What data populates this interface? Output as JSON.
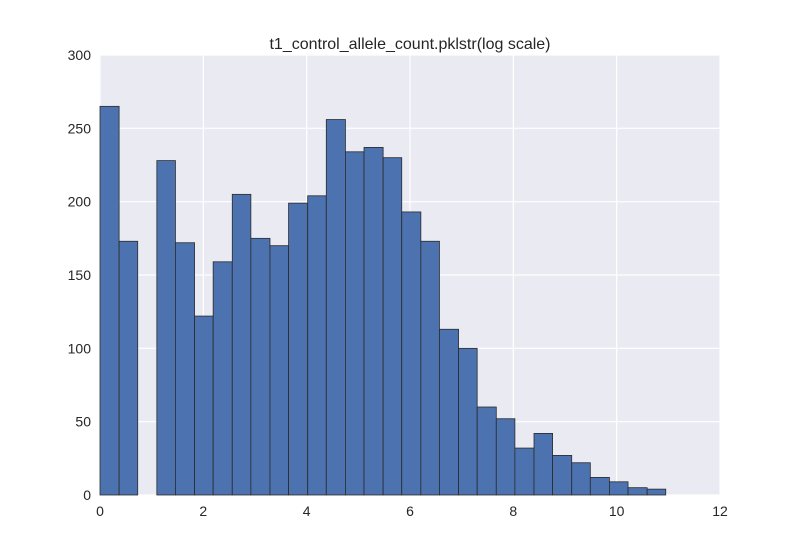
{
  "chart_data": {
    "type": "bar",
    "title": "t1_control_allele_count.pklstr(log scale)",
    "xlabel": "",
    "ylabel": "",
    "xlim": [
      0,
      12
    ],
    "ylim": [
      0,
      300
    ],
    "xticks": [
      "0",
      "2",
      "4",
      "6",
      "8",
      "10",
      "12"
    ],
    "yticks": [
      "0",
      "50",
      "100",
      "150",
      "200",
      "250",
      "300"
    ],
    "grid": true,
    "bar_color": "#4C72B0",
    "background_color": "#EAEAF2",
    "bins": [
      {
        "x0": 0.0,
        "x1": 0.37,
        "value": 265
      },
      {
        "x0": 0.37,
        "x1": 0.73,
        "value": 173
      },
      {
        "x0": 0.73,
        "x1": 1.1,
        "value": 0
      },
      {
        "x0": 1.1,
        "x1": 1.46,
        "value": 228
      },
      {
        "x0": 1.46,
        "x1": 1.83,
        "value": 172
      },
      {
        "x0": 1.83,
        "x1": 2.19,
        "value": 122
      },
      {
        "x0": 2.19,
        "x1": 2.56,
        "value": 159
      },
      {
        "x0": 2.56,
        "x1": 2.92,
        "value": 205
      },
      {
        "x0": 2.92,
        "x1": 3.29,
        "value": 175
      },
      {
        "x0": 3.29,
        "x1": 3.65,
        "value": 170
      },
      {
        "x0": 3.65,
        "x1": 4.02,
        "value": 199
      },
      {
        "x0": 4.02,
        "x1": 4.38,
        "value": 204
      },
      {
        "x0": 4.38,
        "x1": 4.75,
        "value": 256
      },
      {
        "x0": 4.75,
        "x1": 5.11,
        "value": 234
      },
      {
        "x0": 5.11,
        "x1": 5.48,
        "value": 237
      },
      {
        "x0": 5.48,
        "x1": 5.84,
        "value": 230
      },
      {
        "x0": 5.84,
        "x1": 6.21,
        "value": 193
      },
      {
        "x0": 6.21,
        "x1": 6.57,
        "value": 173
      },
      {
        "x0": 6.57,
        "x1": 6.94,
        "value": 113
      },
      {
        "x0": 6.94,
        "x1": 7.3,
        "value": 100
      },
      {
        "x0": 7.3,
        "x1": 7.67,
        "value": 60
      },
      {
        "x0": 7.67,
        "x1": 8.03,
        "value": 52
      },
      {
        "x0": 8.03,
        "x1": 8.4,
        "value": 32
      },
      {
        "x0": 8.4,
        "x1": 8.76,
        "value": 42
      },
      {
        "x0": 8.76,
        "x1": 9.13,
        "value": 27
      },
      {
        "x0": 9.13,
        "x1": 9.49,
        "value": 22
      },
      {
        "x0": 9.49,
        "x1": 9.86,
        "value": 12
      },
      {
        "x0": 9.86,
        "x1": 10.22,
        "value": 9
      },
      {
        "x0": 10.22,
        "x1": 10.59,
        "value": 5
      },
      {
        "x0": 10.59,
        "x1": 10.95,
        "value": 4
      }
    ]
  }
}
